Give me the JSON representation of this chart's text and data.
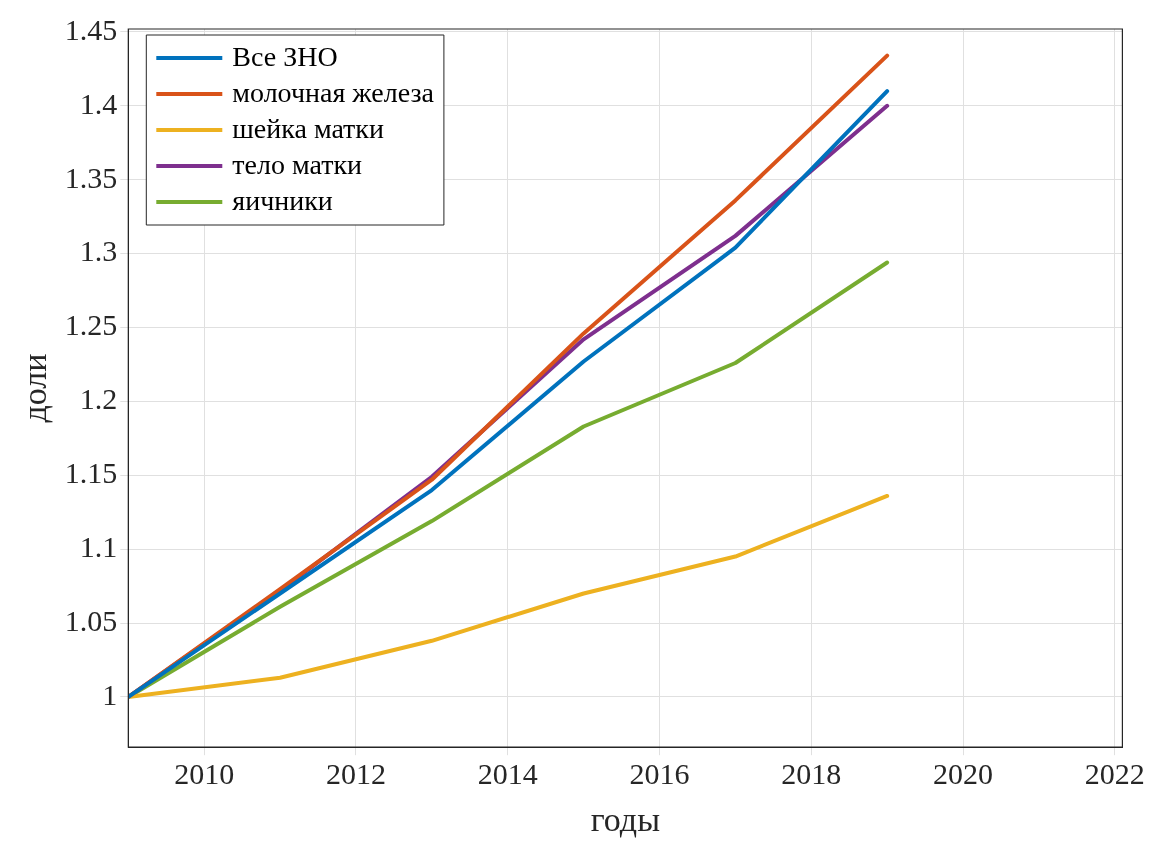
{
  "chart_data": {
    "type": "line",
    "xlabel": "годы",
    "ylabel": "доли",
    "x": [
      2009,
      2011,
      2013,
      2015,
      2017,
      2019
    ],
    "series": [
      {
        "name": "Все ЗНО",
        "color": "#0072bd",
        "values": [
          1,
          1.07,
          1.14,
          1.227,
          1.304,
          1.41
        ]
      },
      {
        "name": "молочная железа",
        "color": "#d95319",
        "values": [
          1,
          1.073,
          1.147,
          1.246,
          1.336,
          1.434
        ]
      },
      {
        "name": "шейка матки",
        "color": "#edb120",
        "values": [
          1,
          1.013,
          1.038,
          1.07,
          1.095,
          1.136
        ]
      },
      {
        "name": "тело матки",
        "color": "#7e2f8e",
        "values": [
          1,
          1.072,
          1.149,
          1.242,
          1.312,
          1.4
        ]
      },
      {
        "name": "яичники",
        "color": "#77ac30",
        "values": [
          1,
          1.061,
          1.119,
          1.183,
          1.226,
          1.294
        ]
      }
    ],
    "xlim": [
      2009,
      2022.1
    ],
    "xticks": [
      2010,
      2012,
      2014,
      2016,
      2018,
      2020,
      2022
    ],
    "ylim": [
      0.966,
      1.452
    ],
    "yticks": [
      1,
      1.05,
      1.1,
      1.15,
      1.2,
      1.25,
      1.3,
      1.35,
      1.4,
      1.45
    ],
    "grid": true,
    "legend": "top left",
    "marker": "none",
    "line_style": "solid"
  }
}
